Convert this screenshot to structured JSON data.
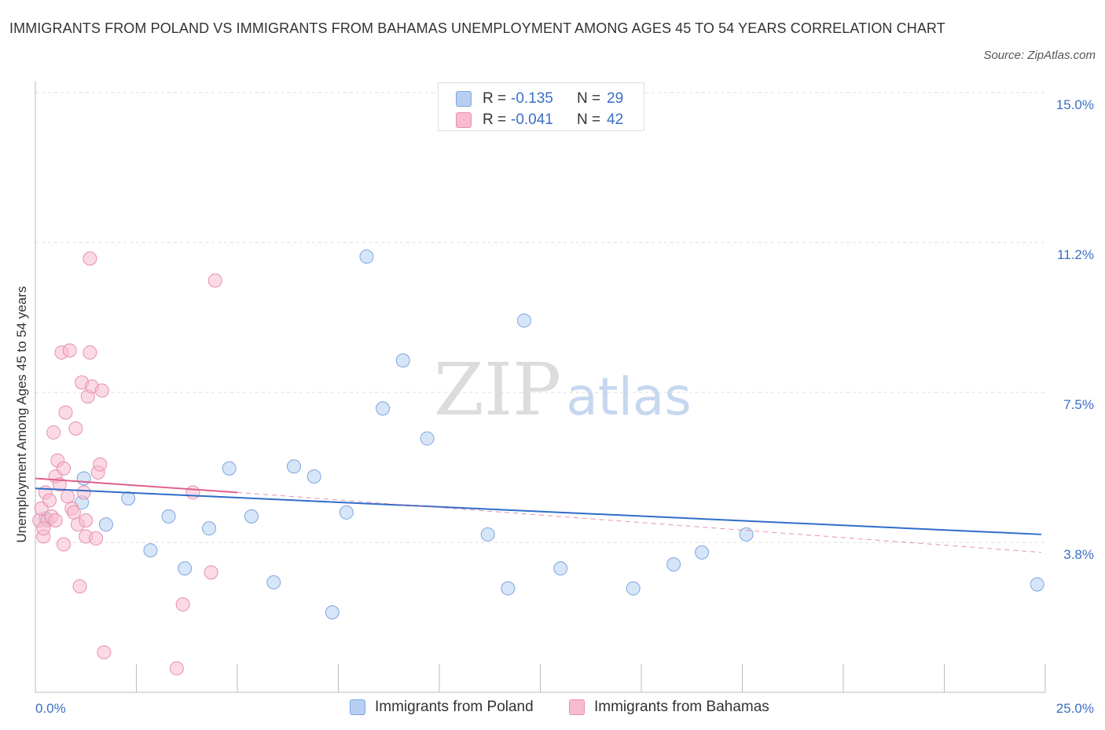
{
  "title": "IMMIGRANTS FROM POLAND VS IMMIGRANTS FROM BAHAMAS UNEMPLOYMENT AMONG AGES 45 TO 54 YEARS CORRELATION CHART",
  "source": "Source: ZipAtlas.com",
  "watermark": {
    "zip": "ZIP",
    "atlas": "atlas"
  },
  "colors": {
    "blue_fill": "#b6cff3",
    "blue_stroke": "#7fa6df",
    "blue_line": "#2f6ccb",
    "pink_fill": "#f7bcd0",
    "pink_stroke": "#e690ad",
    "pink_line": "#e0608a",
    "tick_label": "#3b6fc4",
    "grid": "#dddddd"
  },
  "legend_top": [
    {
      "r_label": "R =",
      "r_value": "-0.135",
      "n_label": "N =",
      "n_value": "29"
    },
    {
      "r_label": "R =",
      "r_value": "-0.041",
      "n_label": "N =",
      "n_value": "42"
    }
  ],
  "chart_data": {
    "type": "scatter",
    "title": "IMMIGRANTS FROM POLAND VS IMMIGRANTS FROM BAHAMAS UNEMPLOYMENT AMONG AGES 45 TO 54 YEARS CORRELATION CHART",
    "xlabel": "",
    "ylabel": "Unemployment Among Ages 45 to 54 years",
    "xlim": [
      0,
      25
    ],
    "ylim": [
      0,
      15
    ],
    "x_tick_labels": [
      "0.0%",
      "25.0%"
    ],
    "y_ticks": [
      3.8,
      7.5,
      11.2,
      15.0
    ],
    "y_tick_labels": [
      "3.8%",
      "7.5%",
      "11.2%",
      "15.0%"
    ],
    "grid": true,
    "legend_position": "bottom",
    "series": [
      {
        "name": "Immigrants from Poland",
        "color": "blue",
        "r": -0.135,
        "n": 29,
        "trend": {
          "x0": 0,
          "y0": 5.1,
          "x1": 24.9,
          "y1": 3.95
        },
        "points": [
          [
            0.25,
            4.35
          ],
          [
            1.2,
            5.35
          ],
          [
            1.75,
            4.2
          ],
          [
            2.3,
            4.85
          ],
          [
            2.85,
            3.55
          ],
          [
            3.3,
            4.4
          ],
          [
            3.7,
            3.1
          ],
          [
            4.3,
            4.1
          ],
          [
            4.8,
            5.6
          ],
          [
            5.35,
            4.4
          ],
          [
            5.9,
            2.75
          ],
          [
            6.4,
            5.65
          ],
          [
            6.9,
            5.4
          ],
          [
            7.35,
            2.0
          ],
          [
            7.7,
            4.5
          ],
          [
            8.2,
            10.9
          ],
          [
            8.6,
            7.1
          ],
          [
            9.1,
            8.3
          ],
          [
            9.7,
            6.35
          ],
          [
            11.2,
            3.95
          ],
          [
            11.7,
            2.6
          ],
          [
            12.1,
            9.3
          ],
          [
            13.0,
            3.1
          ],
          [
            14.8,
            2.6
          ],
          [
            15.8,
            3.2
          ],
          [
            16.5,
            3.5
          ],
          [
            17.6,
            3.95
          ],
          [
            24.8,
            2.7
          ],
          [
            1.15,
            4.75
          ]
        ]
      },
      {
        "name": "Immigrants from Bahamas",
        "color": "pink",
        "r": -0.041,
        "n": 42,
        "trend": {
          "x0": 0,
          "y0": 5.35,
          "x1": 5.0,
          "y1": 5.0
        },
        "trend_dashed": {
          "x0": 5.0,
          "y0": 5.0,
          "x1": 24.9,
          "y1": 3.5
        },
        "points": [
          [
            0.1,
            4.3
          ],
          [
            0.15,
            4.6
          ],
          [
            0.2,
            3.9
          ],
          [
            0.25,
            5.0
          ],
          [
            0.3,
            4.3
          ],
          [
            0.35,
            4.8
          ],
          [
            0.4,
            4.4
          ],
          [
            0.45,
            6.5
          ],
          [
            0.5,
            5.4
          ],
          [
            0.55,
            5.8
          ],
          [
            0.6,
            5.2
          ],
          [
            0.65,
            8.5
          ],
          [
            0.7,
            5.6
          ],
          [
            0.7,
            3.7
          ],
          [
            0.75,
            7.0
          ],
          [
            0.85,
            8.55
          ],
          [
            0.9,
            4.6
          ],
          [
            0.95,
            4.5
          ],
          [
            1.0,
            6.6
          ],
          [
            1.05,
            4.2
          ],
          [
            1.1,
            2.65
          ],
          [
            1.15,
            7.75
          ],
          [
            1.2,
            5.0
          ],
          [
            1.25,
            4.3
          ],
          [
            1.3,
            7.4
          ],
          [
            1.35,
            8.5
          ],
          [
            1.25,
            3.9
          ],
          [
            1.4,
            7.65
          ],
          [
            1.35,
            10.85
          ],
          [
            1.5,
            3.85
          ],
          [
            1.55,
            5.5
          ],
          [
            1.6,
            5.7
          ],
          [
            1.65,
            7.55
          ],
          [
            1.7,
            1.0
          ],
          [
            3.5,
            0.6
          ],
          [
            3.65,
            2.2
          ],
          [
            3.9,
            5.0
          ],
          [
            4.35,
            3.0
          ],
          [
            4.45,
            10.3
          ],
          [
            0.2,
            4.1
          ],
          [
            0.5,
            4.3
          ],
          [
            0.8,
            4.9
          ]
        ]
      }
    ]
  }
}
